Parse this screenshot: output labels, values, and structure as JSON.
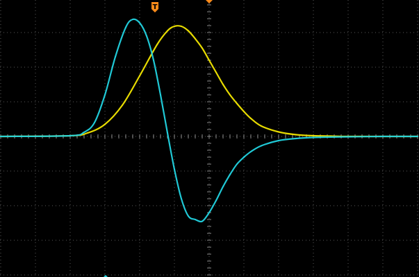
{
  "screen": {
    "background_color": "#000000",
    "grid_color": "#5a5a5a",
    "grid_divisions": {
      "horizontal": 12,
      "vertical": 8
    },
    "subdivisions_per_division": 5
  },
  "markers": {
    "trigger_position": {
      "label": "T",
      "color": "#ff8c1a",
      "icon": "trigger-position-icon"
    },
    "horizontal_center": {
      "color": "#ff8c1a",
      "icon": "center-marker-icon"
    },
    "channel_marker": {
      "color": "#22d3e0",
      "icon": "channel-marker-icon"
    }
  },
  "chart_data": {
    "type": "line",
    "grid": true,
    "x_range_divisions": [
      -6,
      6
    ],
    "y_range_divisions": [
      -4,
      4
    ],
    "series": [
      {
        "color": "#f2e600",
        "x": [
          -6,
          -4,
          -3.5,
          -3,
          -2.5,
          -2,
          -1.5,
          -1.2,
          -1,
          -0.8,
          -0.6,
          -0.4,
          -0.2,
          0,
          0.2,
          0.4,
          0.6,
          0.8,
          1,
          1.2,
          1.5,
          2,
          2.5,
          3,
          3.5,
          4,
          5,
          6
        ],
        "y": [
          0,
          0.02,
          0.1,
          0.35,
          0.9,
          1.75,
          2.65,
          3.05,
          3.18,
          3.18,
          3.05,
          2.82,
          2.55,
          2.2,
          1.85,
          1.5,
          1.2,
          0.95,
          0.72,
          0.52,
          0.3,
          0.13,
          0.05,
          0.02,
          0.01,
          0,
          0,
          0
        ]
      },
      {
        "color": "#22d3e0",
        "x": [
          -6,
          -4,
          -3.6,
          -3.3,
          -3,
          -2.7,
          -2.4,
          -2.2,
          -2,
          -1.8,
          -1.6,
          -1.4,
          -1.2,
          -1,
          -0.8,
          -0.6,
          -0.4,
          -0.2,
          0,
          0.2,
          0.4,
          0.6,
          0.8,
          1,
          1.2,
          1.5,
          2,
          2.5,
          3,
          4,
          5,
          6
        ],
        "y": [
          0,
          0.02,
          0.12,
          0.4,
          1.2,
          2.3,
          3.15,
          3.38,
          3.28,
          2.9,
          2.2,
          1.2,
          0.1,
          -0.95,
          -1.8,
          -2.3,
          -2.4,
          -2.45,
          -2.2,
          -1.85,
          -1.45,
          -1.1,
          -0.8,
          -0.6,
          -0.44,
          -0.27,
          -0.12,
          -0.06,
          -0.03,
          -0.01,
          0,
          0
        ]
      }
    ]
  }
}
